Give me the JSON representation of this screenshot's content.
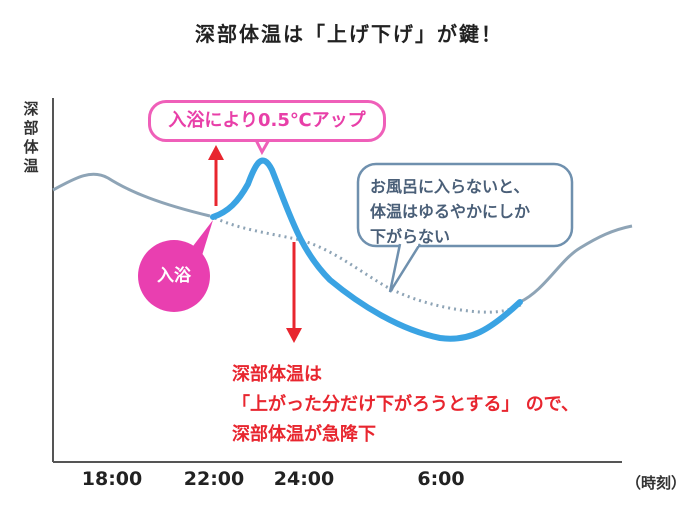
{
  "chart_data": {
    "type": "line",
    "title": "深部体温は「上げ下げ」が鍵！",
    "xlabel": "（時刻）",
    "ylabel": "深部体温",
    "x_ticks": [
      "18:00",
      "22:00",
      "24:00",
      "6:00"
    ],
    "series": [
      {
        "x": [
          "18:00",
          "22:00",
          "23:00",
          "24:00",
          "6:00",
          "7:00"
        ]
      },
      {
        "x": [
          "22:00",
          "23:00",
          "24:00",
          "6:00"
        ]
      },
      {
        "x": [
          "22:00",
          "24:00",
          "6:00"
        ]
      }
    ],
    "annotations": {
      "rise_label": "入浴により0.5℃アップ",
      "bath_label": "入浴",
      "no_bath_note": [
        "お風呂に入らないと、",
        "体温はゆるやかにしか",
        "下がらない"
      ],
      "drop_note": [
        "深部体温は",
        "「上がった分だけ下がろうとする」 ので、",
        "深部体温が急降下"
      ],
      "rise_amount_c": 0.5
    },
    "colors": {
      "base_line": "#8ea4b6",
      "bath_line": "#3aa3e3",
      "no_bath_dotted": "#8ea4b6",
      "arrow": "#e8262f",
      "accent_pink": "#e93fb0",
      "axis": "#555555"
    }
  }
}
